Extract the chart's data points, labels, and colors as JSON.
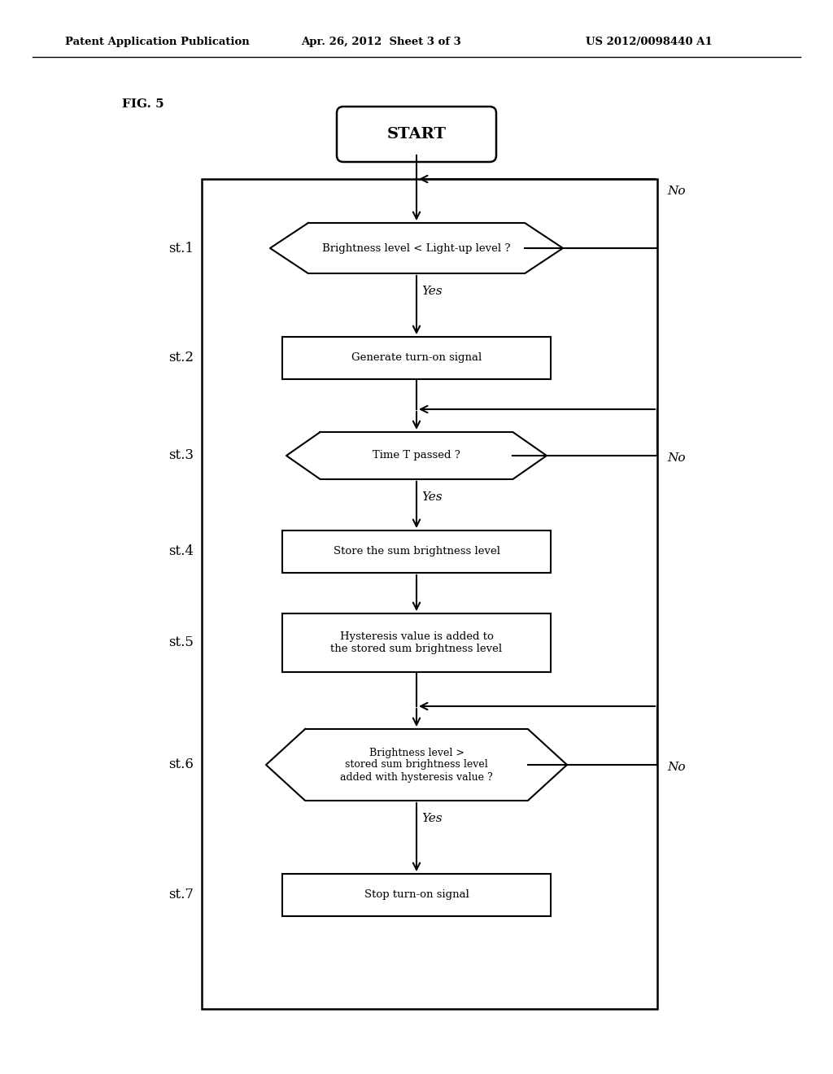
{
  "title_left": "Patent Application Publication",
  "title_mid": "Apr. 26, 2012  Sheet 3 of 3",
  "title_right": "US 2012/0098440 A1",
  "fig_label": "FIG. 5",
  "background_color": "#ffffff",
  "start_label": "START",
  "st1_label": "Brightness level < Light-up level ?",
  "st2_label": "Generate turn-on signal",
  "st3_label": "Time T passed ?",
  "st4_label": "Store the sum brightness level",
  "st5_label": "Hysteresis value is added to\nthe stored sum brightness level",
  "st6_label": "Brightness level >\nstored sum brightness level\nadded with hysteresis value ?",
  "st7_label": "Stop turn-on signal",
  "yes_label": "Yes",
  "no_label": "No"
}
